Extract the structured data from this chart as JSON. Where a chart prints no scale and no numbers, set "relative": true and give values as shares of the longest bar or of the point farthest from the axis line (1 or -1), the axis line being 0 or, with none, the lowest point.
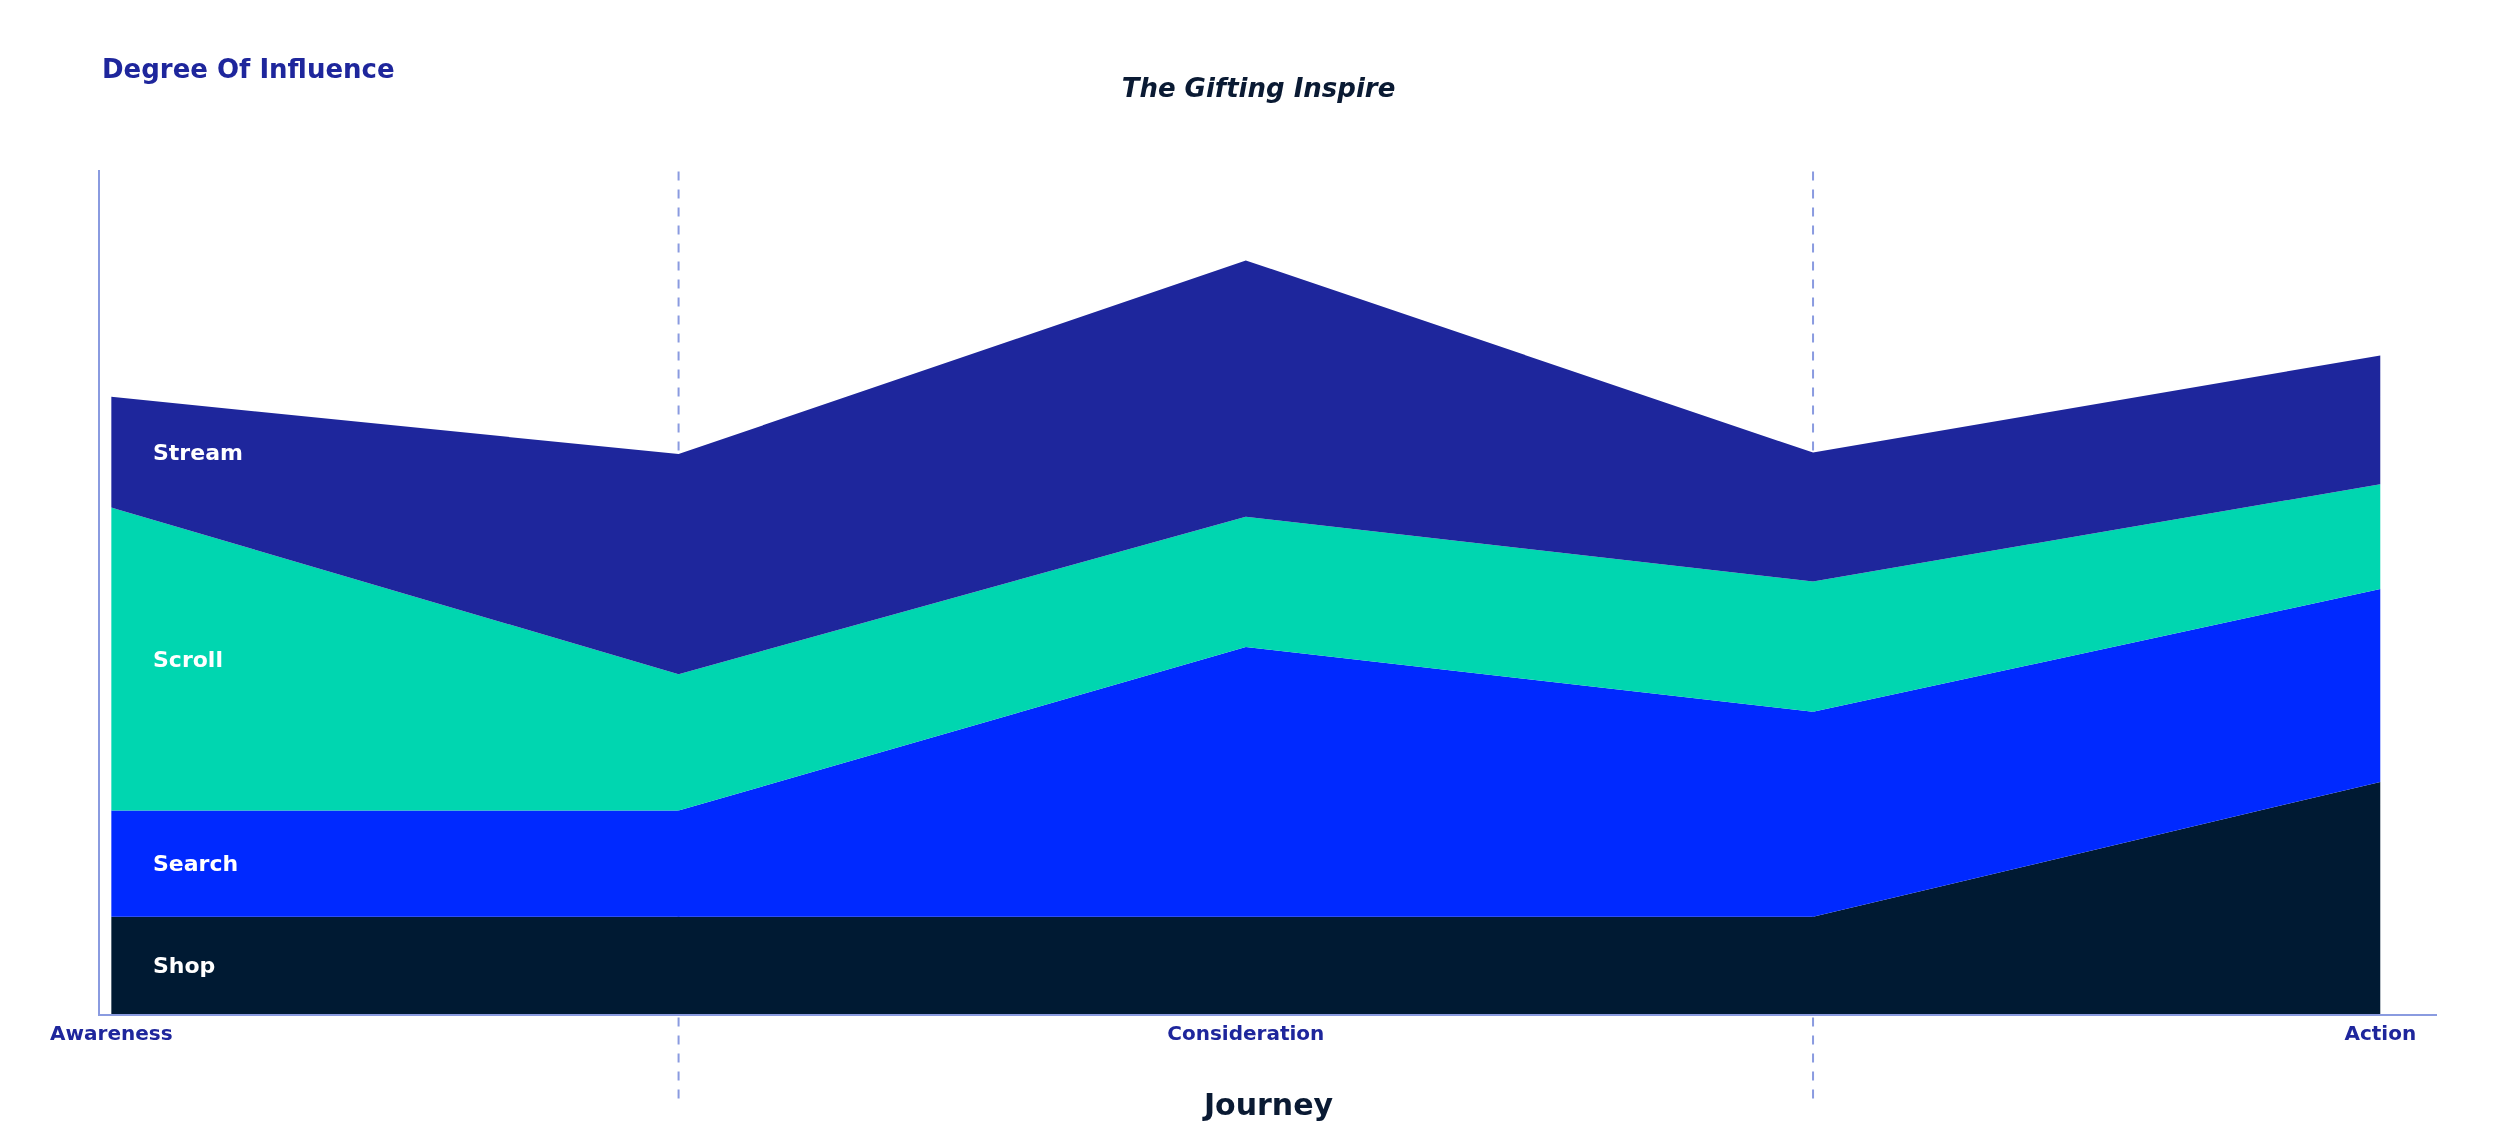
{
  "chart_data": {
    "type": "area",
    "subtitle": "The Gifting Inspire",
    "xlabel": "Journey",
    "annotations": [
      "Degree Of Influence"
    ],
    "relative": true,
    "stacked": true,
    "legend": false,
    "grid": "x",
    "categories": [
      "Awareness",
      null,
      "Consideration",
      null,
      "Action"
    ],
    "series": [
      {
        "name": "Shop",
        "color": "#001a33",
        "values": [
          0.129,
          0.129,
          0.129,
          0.129,
          0.308
        ]
      },
      {
        "name": "Search",
        "color": "#0029ff",
        "values": [
          0.141,
          0.141,
          0.358,
          0.272,
          0.256
        ]
      },
      {
        "name": "Scroll",
        "color": "#00d6b0",
        "values": [
          0.402,
          0.181,
          0.173,
          0.173,
          0.139
        ]
      },
      {
        "name": "Stream",
        "color": "#1e269c",
        "values": [
          0.147,
          0.292,
          0.34,
          0.171,
          0.171
        ]
      }
    ]
  }
}
